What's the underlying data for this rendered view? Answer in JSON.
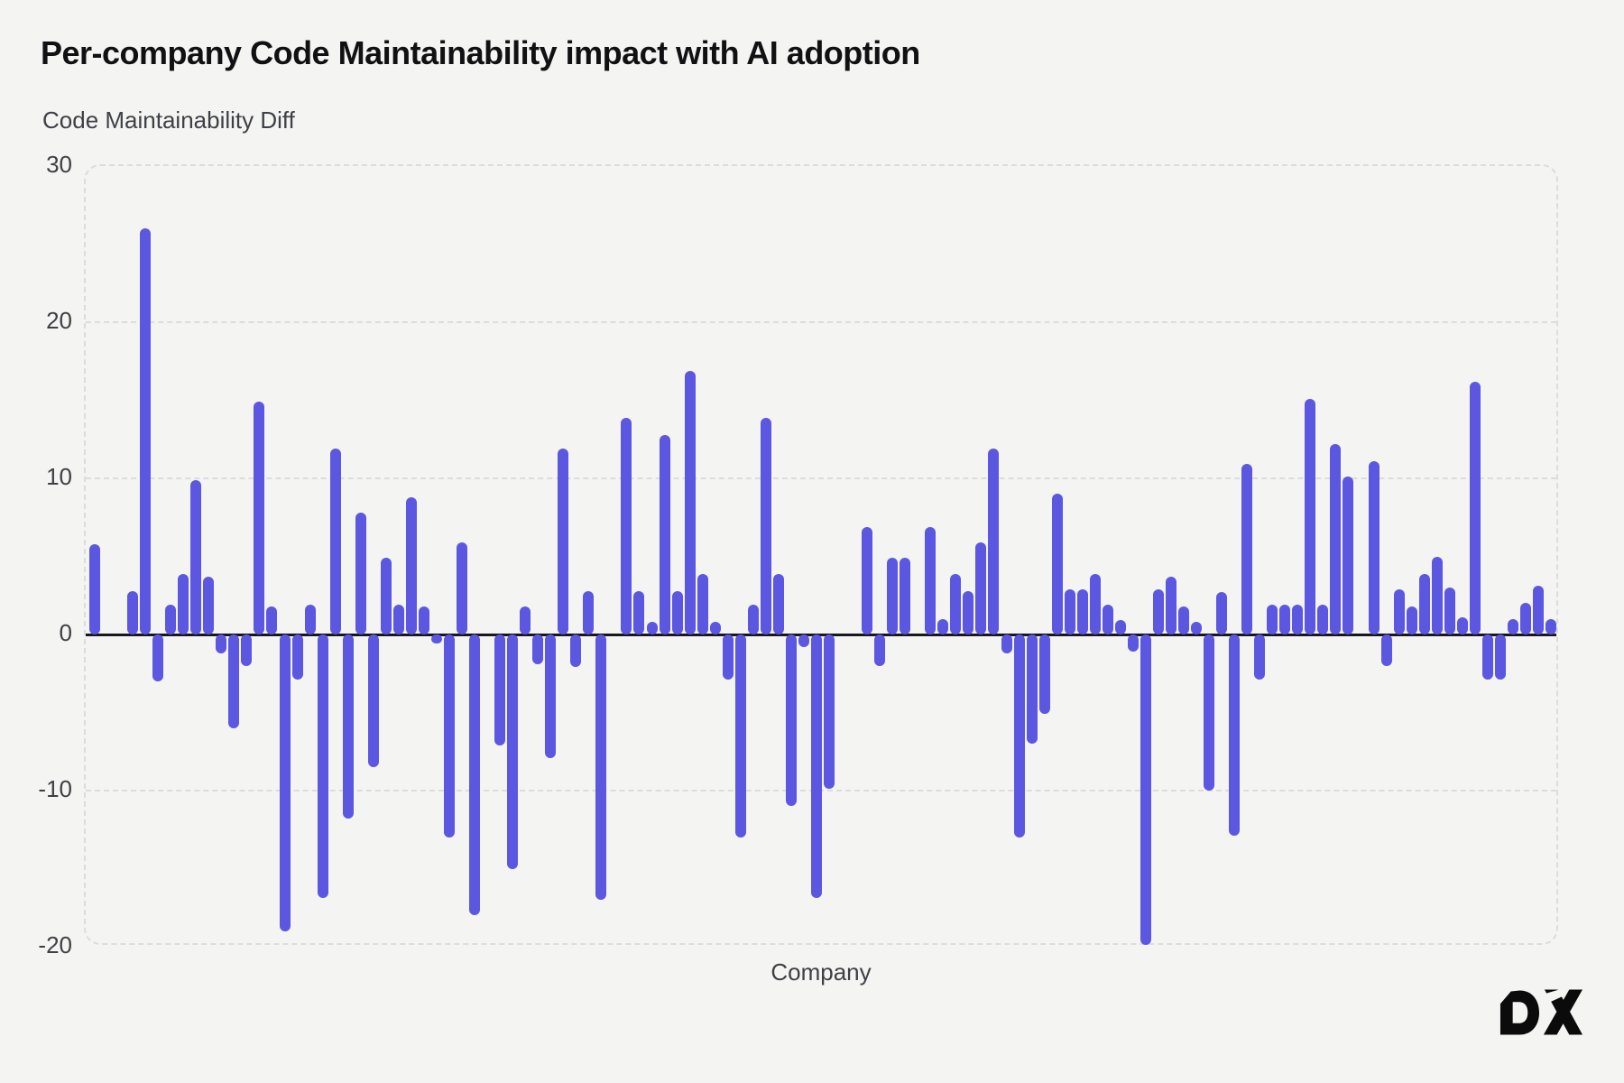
{
  "title": "Per-company Code Maintainability impact with AI adoption",
  "branding": {
    "logo_text": "DX"
  },
  "colors": {
    "background": "#F4F4F2",
    "bar": "#5B57E0",
    "zero_line": "#17171c",
    "grid": "#dcdcda",
    "text_dark": "#111114",
    "text_muted": "#3f4046"
  },
  "chart_data": {
    "type": "bar",
    "title": "Per-company Code Maintainability impact with AI adoption",
    "xlabel": "Company",
    "ylabel": "Code Maintainability Diff",
    "ylim": [
      -20,
      30
    ],
    "yticks": [
      30,
      20,
      10,
      0,
      -10,
      -20
    ],
    "grid": "horizontal dashed, rounded dashed plot border",
    "legend": "none",
    "x_tick_labels": "none (companies anonymous)",
    "bar_color": "#5B57E0",
    "values": [
      5.8,
      0,
      0,
      2.8,
      26.0,
      -3.0,
      1.9,
      3.9,
      9.9,
      3.7,
      -1.2,
      -6.0,
      -2.0,
      14.9,
      1.8,
      -19.0,
      -2.9,
      1.9,
      -16.9,
      11.9,
      -11.8,
      7.8,
      -8.5,
      4.9,
      1.9,
      8.8,
      1.8,
      -0.6,
      -13.0,
      5.9,
      -18.0,
      0,
      -7.1,
      -15.0,
      1.8,
      -1.9,
      -7.9,
      11.9,
      -2.1,
      2.8,
      -17.0,
      0,
      13.9,
      2.8,
      0.8,
      12.8,
      2.8,
      16.9,
      3.9,
      0.8,
      -2.9,
      -13.0,
      1.9,
      13.9,
      3.9,
      -11.0,
      -0.8,
      -16.9,
      -9.9,
      0,
      0,
      6.9,
      -2.0,
      4.9,
      4.9,
      0,
      6.9,
      1.0,
      3.9,
      2.8,
      5.9,
      11.9,
      -1.2,
      -13.0,
      -7.0,
      -5.1,
      9.0,
      2.9,
      2.9,
      3.9,
      1.9,
      0.9,
      -1.1,
      -19.9,
      2.9,
      3.7,
      1.8,
      0.8,
      -10.0,
      2.7,
      -12.9,
      10.9,
      -2.9,
      1.9,
      1.9,
      1.9,
      15.1,
      1.9,
      12.2,
      10.1,
      0,
      11.1,
      -2.0,
      2.9,
      1.8,
      3.9,
      5.0,
      3.0,
      1.1,
      16.2,
      -2.9,
      -2.9,
      1.0,
      2.0,
      3.1,
      1.0
    ]
  }
}
